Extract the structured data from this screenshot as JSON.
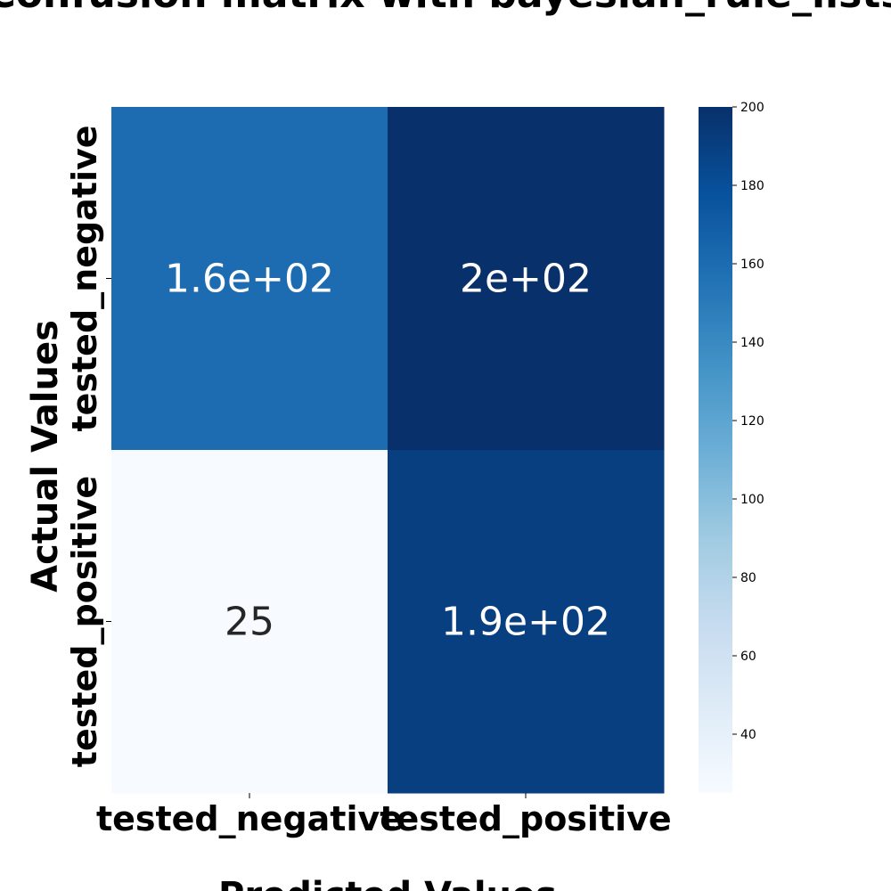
{
  "chart_data": {
    "type": "heatmap",
    "title": "Confusion matrix with bayesian_rule_lists",
    "xlabel": "Predicted Values",
    "ylabel": "Actual Values",
    "x_categories": [
      "tested_negative",
      "tested_positive"
    ],
    "y_categories": [
      "tested_negative",
      "tested_positive"
    ],
    "values": [
      [
        160,
        200
      ],
      [
        25,
        190
      ]
    ],
    "annotations": [
      [
        "1.6e+02",
        "2e+02"
      ],
      [
        "25",
        "1.9e+02"
      ]
    ],
    "colormap": "Blues",
    "colorbar": {
      "min": 25,
      "max": 200,
      "ticks": [
        40,
        60,
        80,
        100,
        120,
        140,
        160,
        180,
        200
      ]
    },
    "colors": {
      "light_text": "#ffffff",
      "dark_text": "#262626"
    }
  }
}
